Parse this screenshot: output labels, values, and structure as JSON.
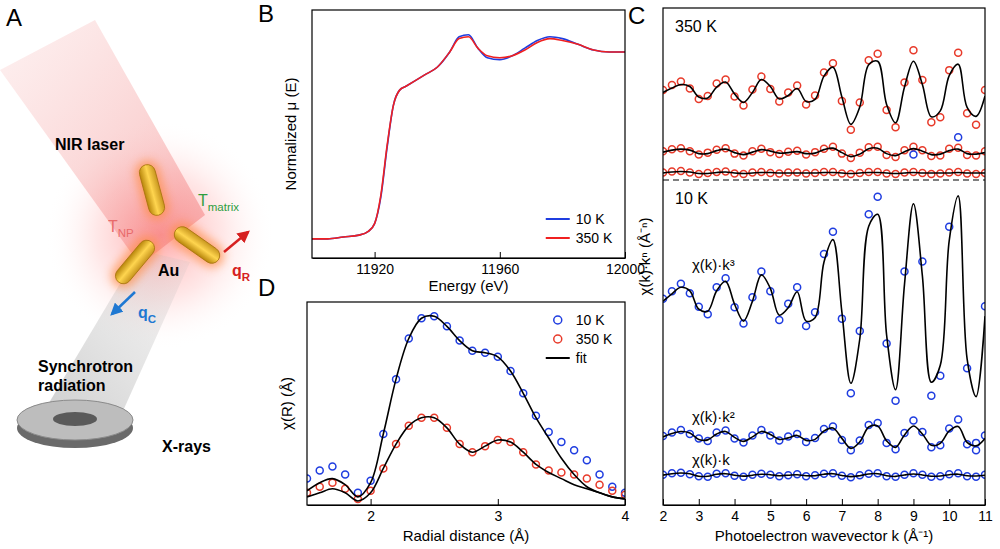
{
  "diagram": {
    "panel_label": "A",
    "laser": "NIR laser",
    "t_matrix": {
      "text": "T",
      "subscript": "matrix"
    },
    "t_np": {
      "text": "T",
      "subscript": "NP"
    },
    "particle": "Au",
    "q_r": {
      "text": "q",
      "subscript": "R"
    },
    "q_c": {
      "text": "q",
      "subscript": "C"
    },
    "source": "Synchrotron radiation",
    "beam": "X-rays"
  },
  "chart_data": [
    {
      "type": "line",
      "panel_label": "B",
      "xlabel": "Energy (eV)",
      "ylabel": "Normalized μ (E)",
      "x": [
        11900,
        11905,
        11910,
        11915,
        11918,
        11920,
        11922,
        11924,
        11926,
        11928,
        11930,
        11933,
        11936,
        11940,
        11944,
        11947,
        11950,
        11953,
        11956,
        11960,
        11964,
        11968,
        11972,
        11976,
        11980,
        11985,
        11990,
        11995,
        12000
      ],
      "xlim": [
        11900,
        12000
      ],
      "xticks": [
        11920,
        11960,
        12000
      ],
      "ylim": [
        -0.1,
        1.2
      ],
      "tick_labels": "x",
      "legend": "lower right",
      "series": [
        {
          "name": "10 K",
          "color": "#1f3de0",
          "line_style": "solid",
          "values": [
            0.0,
            0.0,
            0.01,
            0.02,
            0.04,
            0.08,
            0.22,
            0.48,
            0.7,
            0.78,
            0.8,
            0.83,
            0.86,
            0.9,
            0.98,
            1.06,
            1.07,
            1.0,
            0.95,
            0.94,
            0.96,
            1.0,
            1.04,
            1.06,
            1.05,
            1.02,
            0.99,
            0.98,
            0.98
          ]
        },
        {
          "name": "350 K",
          "color": "#f02020",
          "line_style": "solid",
          "values": [
            0.0,
            0.0,
            0.01,
            0.02,
            0.04,
            0.08,
            0.23,
            0.49,
            0.7,
            0.78,
            0.8,
            0.83,
            0.86,
            0.9,
            0.98,
            1.05,
            1.06,
            1.0,
            0.96,
            0.95,
            0.96,
            0.99,
            1.03,
            1.05,
            1.04,
            1.02,
            0.99,
            0.98,
            0.98
          ]
        }
      ]
    },
    {
      "type": "scatter",
      "panel_label": "C",
      "xlabel": "Photoelectron wavevector k (Å⁻¹)",
      "ylabel": "χ(k)·kⁿ (Å⁻ⁿ)",
      "x": [
        2,
        2.25,
        2.5,
        2.75,
        3,
        3.25,
        3.5,
        3.75,
        4,
        4.25,
        4.5,
        4.75,
        5,
        5.25,
        5.5,
        5.75,
        6,
        6.25,
        6.5,
        6.75,
        7,
        7.25,
        7.5,
        7.75,
        8,
        8.25,
        8.5,
        8.75,
        9,
        9.25,
        9.5,
        9.75,
        10,
        10.25,
        10.5,
        10.75,
        11
      ],
      "xlim": [
        2,
        11
      ],
      "xticks": [
        2,
        3,
        4,
        5,
        6,
        7,
        8,
        9,
        10,
        11
      ],
      "ylim": [
        0,
        100
      ],
      "tick_labels": "x",
      "groups": [
        {
          "label": "350 K",
          "series": [
            {
              "type": "scatter",
              "marker": "circle",
              "color": "#e83a2a",
              "values": [
                83.5,
                84.5,
                85.2,
                83.8,
                81.7,
                82.3,
                84.8,
                85.6,
                82.2,
                80.4,
                83.6,
                86.2,
                83.7,
                81.2,
                83.0,
                84.4,
                80.6,
                82.4,
                87.0,
                88.9,
                81.3,
                75.5,
                81.0,
                89.5,
                90.8,
                79.5,
                76.0,
                85.0,
                91.5,
                85.5,
                77.0,
                78.0,
                87.5,
                91.0,
                78.8,
                76.5,
                83.5
              ]
            },
            {
              "type": "line",
              "line_style": "solid",
              "color": "#000000",
              "values": [
                83,
                83.9,
                84.6,
                84.2,
                82.1,
                81.9,
                84.1,
                85.1,
                82.7,
                81.0,
                83.0,
                85.6,
                84.2,
                81.7,
                82.4,
                83.8,
                81.2,
                81.6,
                86.3,
                88.1,
                82.1,
                76.6,
                80.1,
                88.6,
                89.3,
                80.6,
                76.9,
                84.1,
                89.3,
                84.6,
                78.1,
                79.3,
                86.4,
                88.7,
                80.0,
                78.2,
                82.3
              ]
            },
            {
              "type": "scatter",
              "marker": "circle",
              "color": "#e83a2a",
              "values": [
                71.2,
                71.6,
                71.8,
                71.2,
                70.5,
                70.9,
                71.5,
                71.8,
                70.7,
                70.3,
                71.2,
                71.7,
                71.0,
                70.6,
                71.1,
                71.3,
                70.5,
                71.0,
                71.7,
                72.1,
                70.7,
                69.8,
                70.9,
                72.0,
                72.1,
                70.4,
                70.0,
                71.4,
                72.1,
                71.4,
                70.2,
                70.3,
                71.7,
                71.9,
                70.4,
                70.3,
                71.2
              ]
            },
            {
              "type": "line",
              "line_style": "solid",
              "color": "#000000",
              "values": [
                71.0,
                71.4,
                71.6,
                71.4,
                70.7,
                70.7,
                71.3,
                71.6,
                70.9,
                70.5,
                71.0,
                71.5,
                71.2,
                70.8,
                70.9,
                71.1,
                70.7,
                70.8,
                71.5,
                71.8,
                70.9,
                70.1,
                70.6,
                71.7,
                71.8,
                70.7,
                70.3,
                71.1,
                71.7,
                71.2,
                70.5,
                70.6,
                71.3,
                71.6,
                70.7,
                70.6,
                70.9
              ]
            },
            {
              "type": "scatter",
              "marker": "circle",
              "color": "#e83a2a",
              "values": [
                66.9,
                67.1,
                67.2,
                66.9,
                66.6,
                66.8,
                67.0,
                67.1,
                66.7,
                66.6,
                66.9,
                67.0,
                66.8,
                66.7,
                66.9,
                66.9,
                66.7,
                66.8,
                67.0,
                67.0,
                66.7,
                66.6,
                66.8,
                67.0,
                67.0,
                66.7,
                66.6,
                66.9,
                67.0,
                66.8,
                66.6,
                66.7,
                66.9,
                67.0,
                66.7,
                66.6,
                66.8
              ]
            },
            {
              "type": "line",
              "line_style": "solid",
              "color": "#000000",
              "values": [
                66.8,
                67.0,
                67.1,
                67.0,
                66.7,
                66.7,
                66.9,
                67.0,
                66.8,
                66.7,
                66.8,
                66.9,
                66.9,
                66.8,
                66.8,
                66.8,
                66.8,
                66.8,
                66.9,
                66.9,
                66.8,
                66.7,
                66.8,
                66.9,
                66.9,
                66.8,
                66.7,
                66.8,
                66.9,
                66.8,
                66.8,
                66.8,
                66.8,
                66.9,
                66.8,
                66.8,
                66.8
              ]
            }
          ]
        },
        {
          "label": "10 K",
          "series": [
            {
              "name": "χ(k)·k³",
              "type": "scatter",
              "marker": "circle",
              "color": "#1f3de0",
              "values": [
                41.5,
                43.0,
                44.5,
                42.6,
                39.9,
                38.4,
                43.8,
                45.6,
                39.8,
                36.5,
                41.8,
                47.0,
                43.0,
                37.2,
                40.5,
                43.8,
                36.0,
                38.8,
                50.5,
                55.0,
                37.5,
                22.5,
                35.0,
                58.5,
                62.0,
                32.5,
                21.0,
                47.0,
                70.5,
                49.0,
                22.0,
                26.0,
                56.0,
                74.0,
                27.5,
                12.5,
                40.0
              ]
            },
            {
              "type": "line",
              "line_style": "solid",
              "color": "#000000",
              "values": [
                41,
                42.5,
                43.8,
                43.1,
                39.4,
                39.0,
                43.1,
                45.0,
                40.4,
                37.0,
                41.0,
                46.3,
                43.6,
                38.2,
                39.7,
                42.9,
                37.0,
                37.7,
                48.9,
                53.4,
                38.8,
                24.5,
                33.4,
                56.1,
                58.5,
                34.2,
                23.2,
                44.4,
                60.6,
                46.1,
                24.7,
                28.1,
                53.2,
                62.2,
                29.4,
                21.8,
                38.0
              ]
            },
            {
              "name": "χ(k)·k²",
              "type": "scatter",
              "marker": "circle",
              "color": "#1f3de0",
              "values": [
                13.9,
                14.6,
                15.1,
                14.3,
                13.4,
                12.9,
                14.6,
                15.0,
                13.4,
                12.6,
                14.0,
                15.1,
                14.0,
                13.0,
                13.8,
                14.3,
                12.7,
                13.5,
                15.3,
                15.8,
                13.1,
                11.0,
                13.0,
                16.1,
                16.5,
                12.5,
                11.2,
                14.5,
                17.0,
                14.7,
                11.6,
                12.0,
                15.4,
                17.2,
                12.2,
                11.0,
                14.0
              ]
            },
            {
              "type": "line",
              "line_style": "solid",
              "color": "#000000",
              "values": [
                13.7,
                14.4,
                14.8,
                14.5,
                13.2,
                13.1,
                14.3,
                14.8,
                13.6,
                12.8,
                13.7,
                14.8,
                14.2,
                13.2,
                13.5,
                14.0,
                13.0,
                13.2,
                14.9,
                15.5,
                13.4,
                11.4,
                12.7,
                15.7,
                15.9,
                12.9,
                11.6,
                14.1,
                15.9,
                14.3,
                12.0,
                12.4,
                14.9,
                15.8,
                12.6,
                11.9,
                13.4
              ]
            },
            {
              "name": "χ(k)·k",
              "type": "scatter",
              "marker": "circle",
              "color": "#1f3de0",
              "values": [
                6.1,
                6.4,
                6.5,
                6.2,
                5.8,
                5.7,
                6.3,
                6.4,
                5.9,
                5.7,
                6.1,
                6.3,
                6.1,
                5.8,
                6.0,
                6.2,
                5.8,
                6.0,
                6.3,
                6.4,
                5.9,
                5.6,
                6.0,
                6.3,
                6.4,
                5.8,
                5.7,
                6.1,
                6.4,
                6.1,
                5.7,
                5.8,
                6.2,
                6.4,
                5.8,
                5.7,
                6.1
              ]
            },
            {
              "type": "line",
              "line_style": "solid",
              "color": "#000000",
              "values": [
                6.0,
                6.3,
                6.45,
                6.3,
                5.8,
                5.8,
                6.2,
                6.3,
                6.0,
                5.8,
                6.0,
                6.2,
                6.1,
                5.9,
                6.0,
                6.1,
                5.9,
                5.9,
                6.2,
                6.3,
                5.95,
                5.7,
                5.9,
                6.25,
                6.3,
                5.9,
                5.75,
                6.05,
                6.25,
                6.05,
                5.8,
                5.85,
                6.1,
                6.2,
                5.9,
                5.85,
                6.0
              ]
            }
          ]
        }
      ]
    },
    {
      "type": "scatter",
      "panel_label": "D",
      "xlabel": "Radial distance (Å)",
      "ylabel": "χ(R) (Å)",
      "x": [
        1.5,
        1.6,
        1.7,
        1.8,
        1.9,
        2.0,
        2.1,
        2.2,
        2.3,
        2.4,
        2.5,
        2.6,
        2.7,
        2.8,
        2.9,
        3.0,
        3.1,
        3.2,
        3.3,
        3.4,
        3.5,
        3.6,
        3.7,
        3.8,
        3.9,
        4.0
      ],
      "xlim": [
        1.5,
        4
      ],
      "xticks": [
        2,
        3,
        4
      ],
      "ylim": [
        0,
        100
      ],
      "tick_labels": "x",
      "legend": "upper right",
      "series": [
        {
          "name": "10 K",
          "type": "scatter",
          "marker": "circle",
          "color": "#1f3de0",
          "values": [
            13,
            17,
            19,
            15,
            6,
            12,
            35,
            62,
            82,
            92,
            93,
            88,
            81,
            76,
            75,
            73,
            66,
            55,
            44,
            36,
            31,
            27,
            22,
            15,
            9,
            6
          ]
        },
        {
          "name": "350 K",
          "type": "scatter",
          "marker": "circle",
          "color": "#e83a2a",
          "values": [
            6,
            9,
            11,
            8,
            3,
            7,
            18,
            30,
            39,
            43,
            43,
            38,
            30,
            26,
            29,
            32,
            31,
            26,
            20,
            17,
            16,
            15,
            13,
            10,
            7,
            5
          ]
        },
        {
          "name": "fit",
          "type": "line",
          "line_style": "solid",
          "color": "#000000",
          "values": [
            7,
            11,
            13,
            10,
            4,
            11,
            35,
            62,
            82,
            92,
            93,
            88,
            81,
            76,
            75,
            73,
            66,
            55,
            43,
            33,
            23,
            15,
            9,
            6,
            4,
            3
          ]
        },
        {
          "type": "line",
          "line_style": "solid",
          "color": "#000000",
          "values": [
            4,
            6,
            8,
            6,
            2,
            6,
            18,
            30,
            39,
            43,
            43,
            38,
            30,
            26,
            29,
            32,
            31,
            26,
            20,
            16,
            13,
            10,
            8,
            6,
            4,
            3
          ]
        }
      ]
    }
  ]
}
